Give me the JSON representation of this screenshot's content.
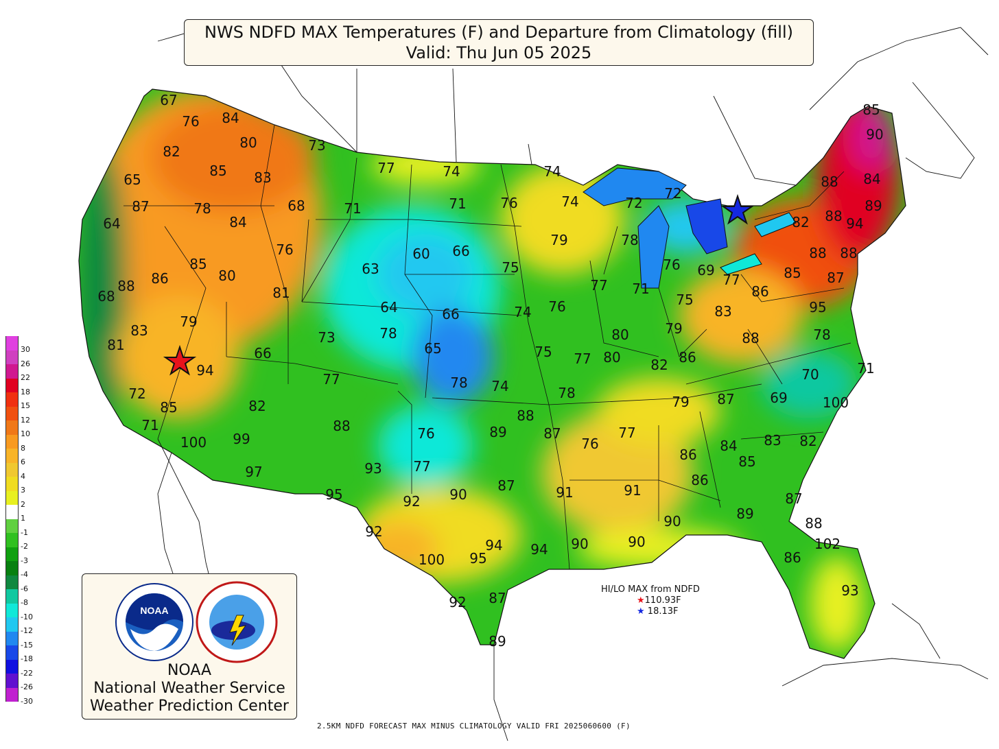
{
  "title": {
    "line1": "NWS NDFD MAX Temperatures (F) and Departure from Climatology (fill)",
    "line2": "Valid: Thu Jun 05 2025"
  },
  "footer": "2.5KM NDFD FORECAST MAX MINUS CLIMATOLOGY VALID FRI 2025060600 (F)",
  "hilo": {
    "heading": "HI/LO MAX from NDFD",
    "hi": "110.93F",
    "lo": "18.13F",
    "hi_color": "#e8141c",
    "lo_color": "#1428e0"
  },
  "logo": {
    "line1": "NOAA",
    "line2": "National Weather Service",
    "line3": "Weather Prediction Center",
    "noaa_badge": "NOAA",
    "nws_ring": "NATIONAL WEATHER SERVICE",
    "noaa_ring_text": "NATIONAL OCEANIC AND ATMOSPHERIC ADMINISTRATION · U.S. DEPARTMENT OF COMMERCE"
  },
  "legend": [
    {
      "label": "30",
      "color": "#e040e0"
    },
    {
      "label": "26",
      "color": "#d040c0"
    },
    {
      "label": "22",
      "color": "#d01890"
    },
    {
      "label": "18",
      "color": "#e00020"
    },
    {
      "label": "15",
      "color": "#f03010"
    },
    {
      "label": "12",
      "color": "#f05010"
    },
    {
      "label": "10",
      "color": "#f07818"
    },
    {
      "label": "8",
      "color": "#f89a20"
    },
    {
      "label": "6",
      "color": "#f8b428"
    },
    {
      "label": "4",
      "color": "#f0c830"
    },
    {
      "label": "3",
      "color": "#f0dc20"
    },
    {
      "label": "2",
      "color": "#e8f020"
    },
    {
      "label": "1",
      "color": "#ffffff"
    },
    {
      "label": "-1",
      "color": "#60d040"
    },
    {
      "label": "-2",
      "color": "#30c020"
    },
    {
      "label": "-3",
      "color": "#10a010"
    },
    {
      "label": "-4",
      "color": "#088010"
    },
    {
      "label": "-6",
      "color": "#108840"
    },
    {
      "label": "-8",
      "color": "#10c8a0"
    },
    {
      "label": "-10",
      "color": "#10e8d8"
    },
    {
      "label": "-12",
      "color": "#20c8f0"
    },
    {
      "label": "-15",
      "color": "#2088f0"
    },
    {
      "label": "-18",
      "color": "#1848e8"
    },
    {
      "label": "-22",
      "color": "#1010e0"
    },
    {
      "label": "-26",
      "color": "#6010d0"
    },
    {
      "label": "-30",
      "color": "#c020d0"
    }
  ],
  "temperatures": [
    "67",
    "76",
    "84",
    "80",
    "73",
    "82",
    "85",
    "83",
    "65",
    "87",
    "78",
    "64",
    "84",
    "68",
    "71",
    "77",
    "74",
    "74",
    "76",
    "71",
    "72",
    "74",
    "72",
    "60",
    "66",
    "63",
    "76",
    "75",
    "79",
    "78",
    "85",
    "80",
    "88",
    "86",
    "76",
    "69",
    "77",
    "82",
    "88",
    "94",
    "88",
    "89",
    "84",
    "90",
    "85",
    "88",
    "88",
    "68",
    "81",
    "64",
    "66",
    "74",
    "76",
    "77",
    "71",
    "75",
    "83",
    "87",
    "85",
    "86",
    "95",
    "83",
    "79",
    "73",
    "78",
    "80",
    "78",
    "88",
    "79",
    "65",
    "81",
    "66",
    "75",
    "77",
    "80",
    "82",
    "86",
    "94",
    "71",
    "70",
    "77",
    "78",
    "74",
    "78",
    "69",
    "100",
    "72",
    "85",
    "82",
    "79",
    "87",
    "88",
    "88",
    "89",
    "87",
    "76",
    "77",
    "71",
    "100",
    "99",
    "76",
    "86",
    "84",
    "83",
    "82",
    "97",
    "77",
    "93",
    "85",
    "86",
    "95",
    "92",
    "90",
    "87",
    "91",
    "91",
    "87",
    "89",
    "92",
    "90",
    "88",
    "100",
    "95",
    "94",
    "94",
    "90",
    "90",
    "86",
    "102",
    "92",
    "87",
    "93",
    "89"
  ],
  "series": {
    "hi_label": "HI",
    "lo_label": "LO"
  }
}
